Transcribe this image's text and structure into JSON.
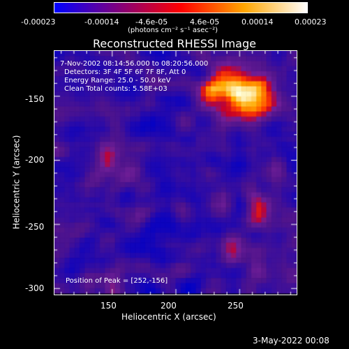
{
  "colorbar": {
    "tick_labels": [
      "-0.00023",
      "-0.00014",
      "-4.6e-05",
      "4.6e-05",
      "0.00014",
      "0.00023"
    ],
    "units_label": "(photons cm⁻² s⁻¹ asec⁻²)",
    "colors": [
      "#0000ff",
      "#7f007f",
      "#ff0000",
      "#ffa500",
      "#ffffff"
    ]
  },
  "plot": {
    "title": "Reconstructed RHESSI Image",
    "annotation_lines": [
      " 7-Nov-2002 08:14:56.000 to 08:20:56.000",
      "Detectors: 3F 4F 5F 6F 7F 8F, Att 0",
      "Energy Range: 25.0 - 50.0 keV",
      "Clean     Total counts: 5.58E+03"
    ],
    "peak_label": "Position of Peak = [252,-156]",
    "xlabel": "Heliocentric X (arcsec)",
    "ylabel": "Heliocentric Y (arcsec)",
    "xticks": [
      "150",
      "200",
      "250"
    ],
    "yticks": [
      "-150",
      "-200",
      "-250",
      "-300"
    ],
    "x_range": [
      105,
      295
    ],
    "y_range": [
      -305,
      -115
    ]
  },
  "footer": {
    "date": "3-May-2022 00:08"
  }
}
